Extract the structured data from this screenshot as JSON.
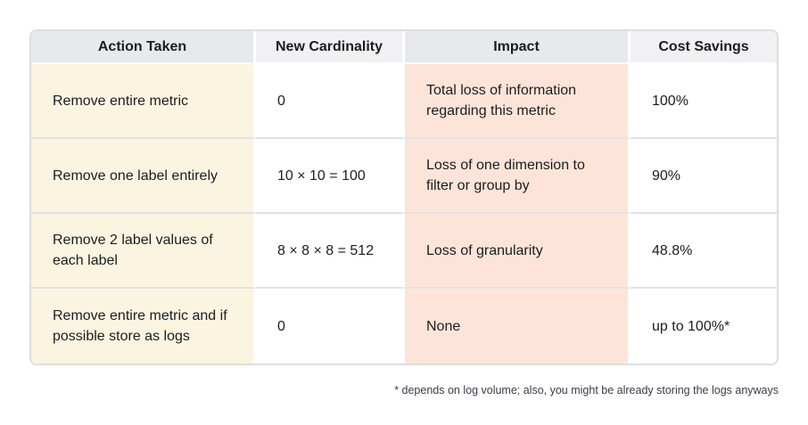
{
  "table": {
    "columns": [
      {
        "label": "Action Taken"
      },
      {
        "label": "New Cardinality"
      },
      {
        "label": "Impact"
      },
      {
        "label": "Cost Savings"
      }
    ],
    "rows": [
      {
        "action": "Remove entire metric",
        "cardinality": "0",
        "impact": "Total loss of information regarding this metric",
        "savings": "100%"
      },
      {
        "action": "Remove one label entirely",
        "cardinality": "10 × 10 = 100",
        "impact": "Loss of one dimension to filter or group by",
        "savings": "90%"
      },
      {
        "action": "Remove 2 label values of each label",
        "cardinality": "8 × 8 × 8 = 512",
        "impact": "Loss of granularity",
        "savings": "48.8%"
      },
      {
        "action": "Remove entire metric and if possible store as logs",
        "cardinality": "0",
        "impact": "None",
        "savings": "up to 100%*"
      }
    ]
  },
  "footnote": "* depends on log volume; also, you might be already storing the logs anyways",
  "colors": {
    "page-bg": "#ffffff",
    "header-dark": "#e8e9ed",
    "header-light": "#f1f1f4",
    "cream": "#fbf4e1",
    "peach": "#fce5d8",
    "cell-white": "#ffffff",
    "border": "#dcdee3",
    "row-line": "#e0e2e6",
    "text": "#1b1d21",
    "footnote": "#363c49"
  }
}
